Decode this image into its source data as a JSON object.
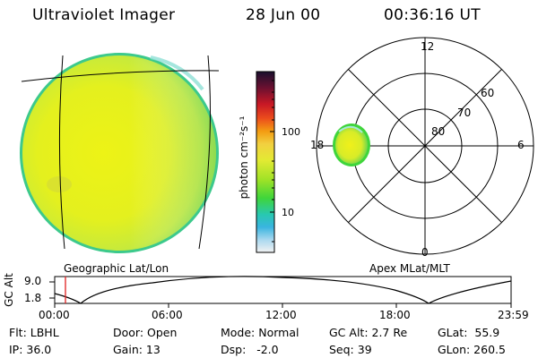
{
  "header": {
    "instrument": "Ultraviolet Imager",
    "date": "28 Jun 00",
    "time": "00:36:16 UT"
  },
  "colors": {
    "disk_fill": "#e8f21a",
    "disk_left_tint": "#d6e829",
    "disk_right_tint": "#b7e84a",
    "disk_rim": "#3cc98c",
    "disk_rim_highlight": "#8fe0d6"
  },
  "colorbar": {
    "unit": "photon cm⁻²s⁻¹",
    "tick_labels": [
      "100",
      "10"
    ],
    "stops": [
      "#1a0f2e",
      "#6b1030",
      "#c81825",
      "#ec4e1c",
      "#f39c12",
      "#f2d040",
      "#e3ea33",
      "#9ee227",
      "#3fd53b",
      "#28c8b0",
      "#39b5e0",
      "#a9d8ef",
      "#f2f2f2"
    ]
  },
  "geographic_panel": {
    "label": "Geographic Lat/Lon"
  },
  "polar_panel": {
    "label": "Apex MLat/MLT",
    "mlt_labels": [
      "12",
      "18",
      "6",
      "0"
    ],
    "lat_labels": [
      "60",
      "70",
      "80"
    ]
  },
  "altitude_strip": {
    "ylabel": "GC Alt",
    "ytick_labels": [
      "9.0",
      "1.8"
    ],
    "xtick_labels": [
      "00:00",
      "06:00",
      "12:00",
      "18:00",
      "23:59"
    ]
  },
  "info": {
    "filter": "Flt: LBHL",
    "ip": "IP: 36.0",
    "door": "Door: Open",
    "gain": "Gain: 13",
    "mode": "Mode: Normal",
    "dsp": "Dsp:   -2.0",
    "gc_alt": "GC Alt: 2.7 Re",
    "seq": "Seq: 39",
    "glat": "GLat:  55.9",
    "glon": "GLon: 260.5"
  }
}
